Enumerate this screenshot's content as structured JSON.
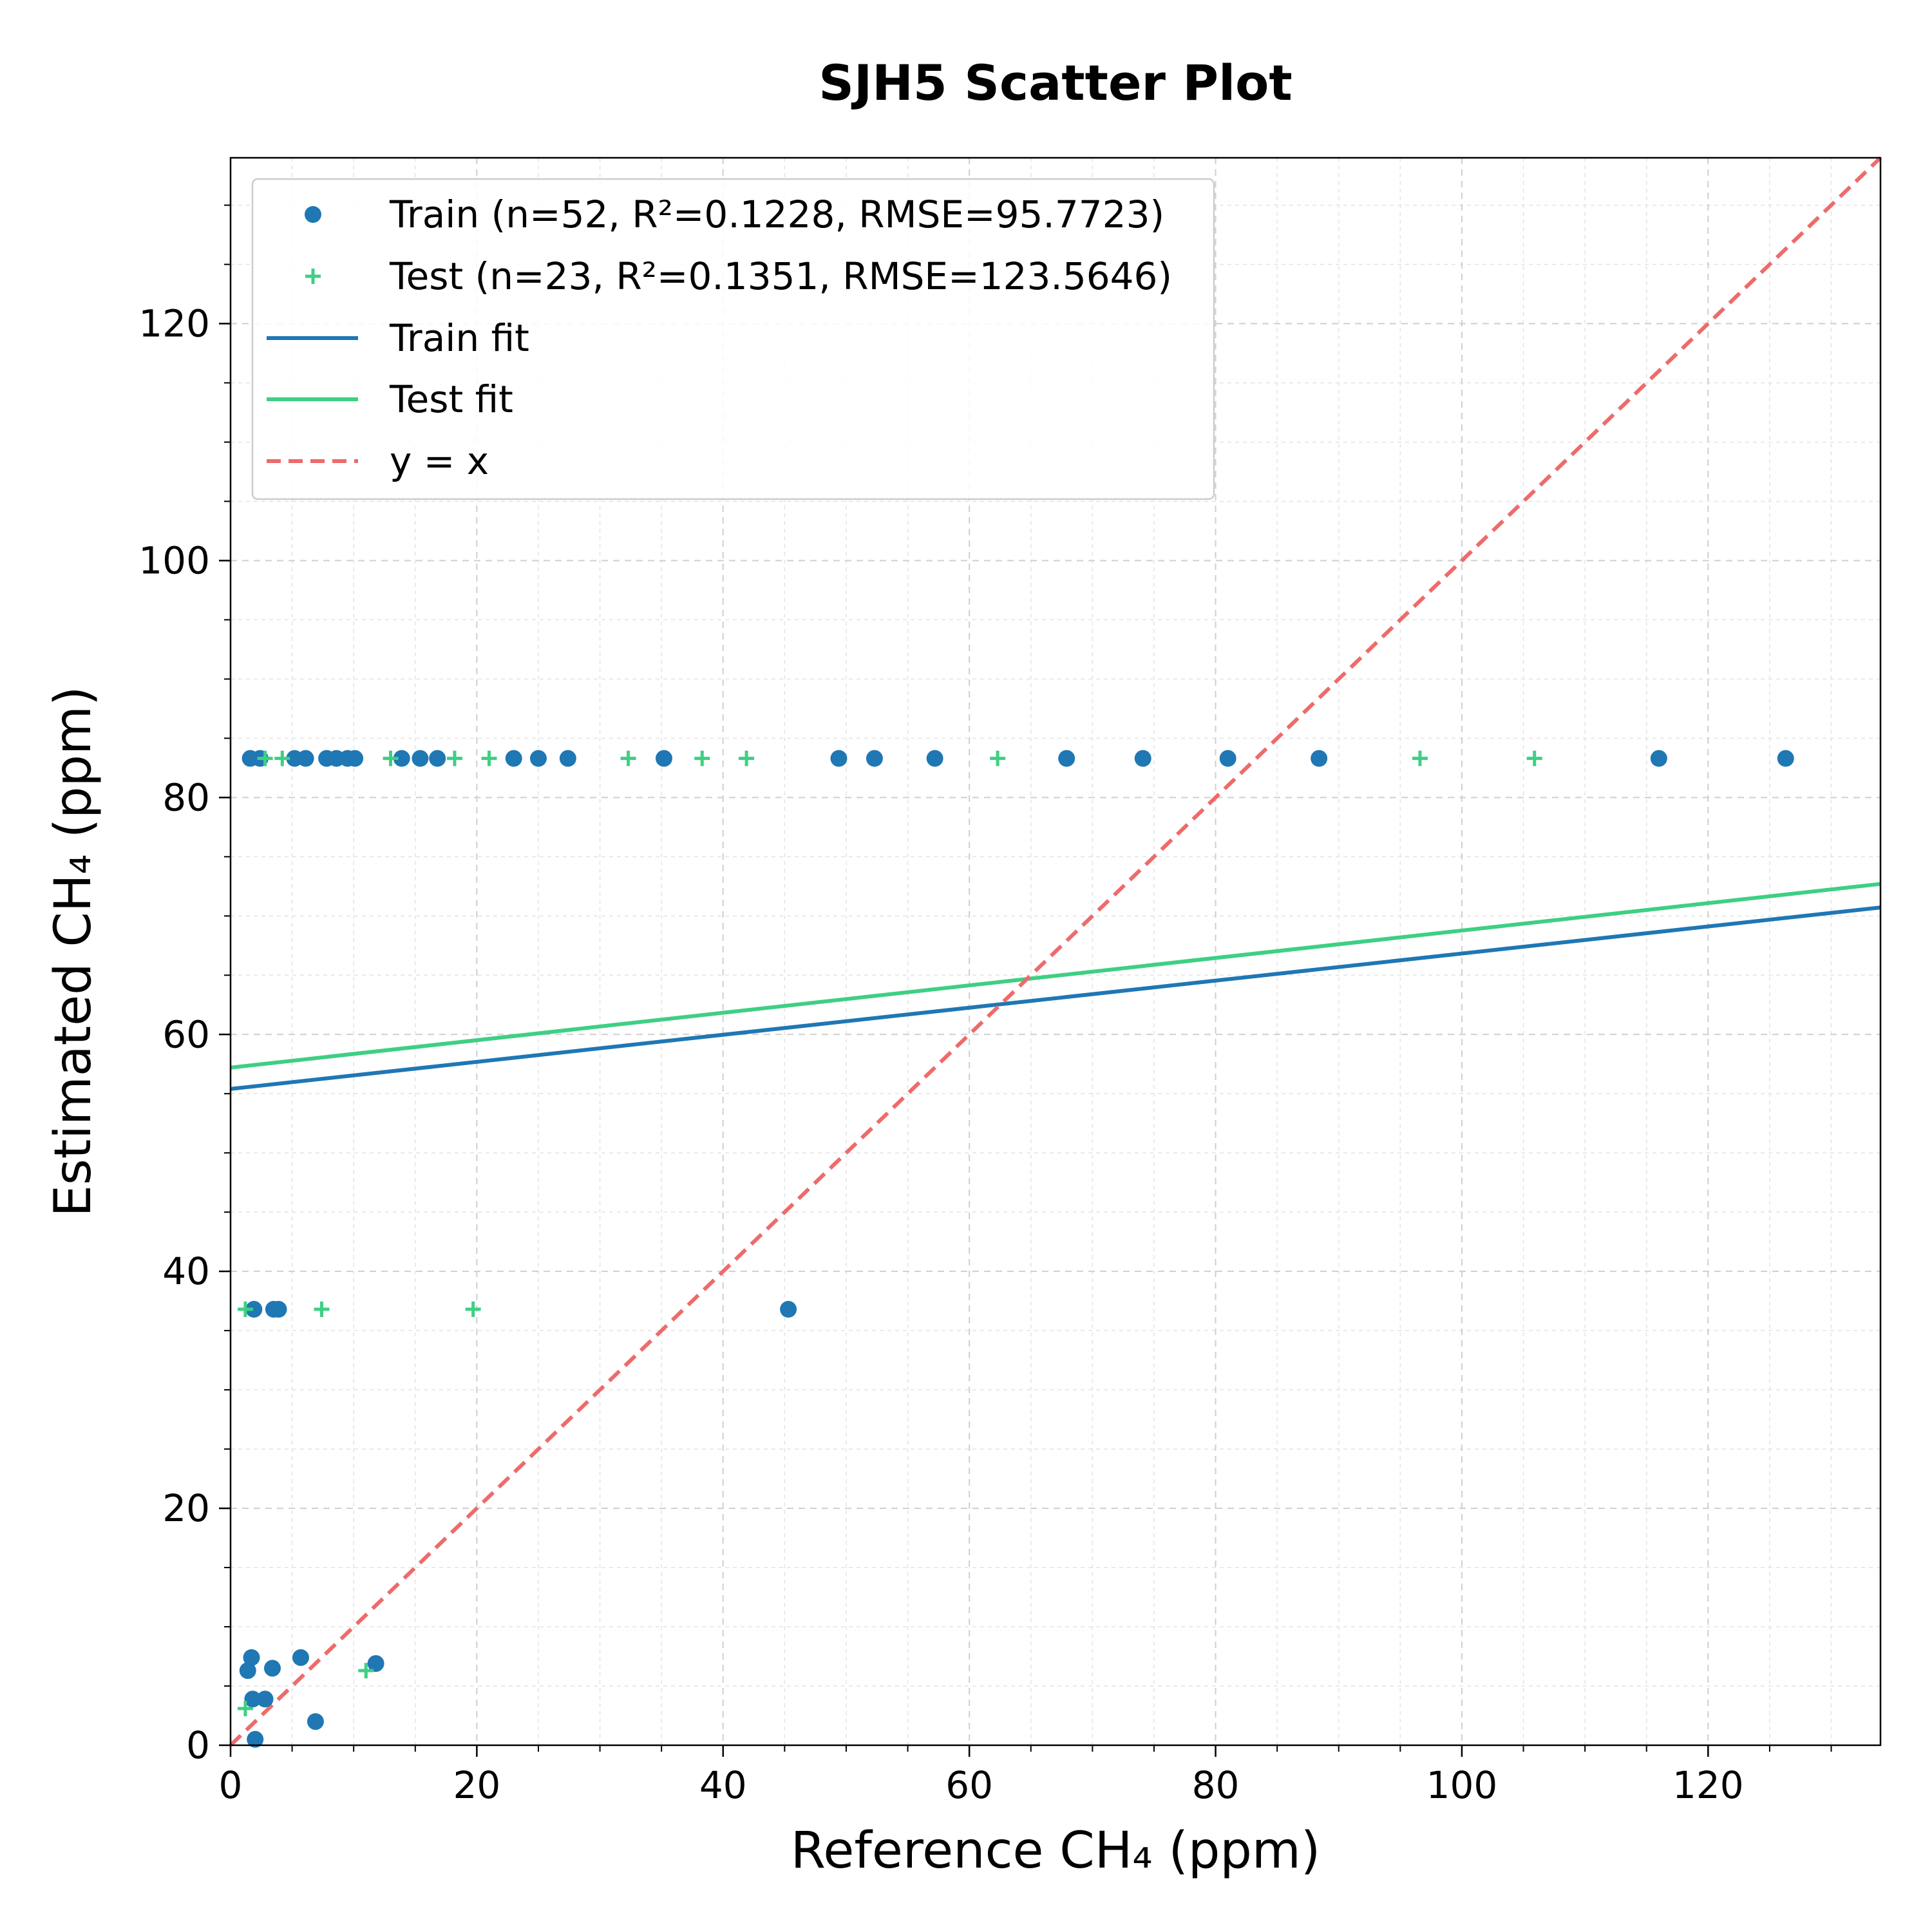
{
  "chart_data": {
    "type": "scatter",
    "title": "SJH5 Scatter Plot",
    "xlabel": "Reference CH₄ (ppm)",
    "ylabel": "Estimated CH₄ (ppm)",
    "xlim": [
      0,
      134
    ],
    "ylim": [
      0,
      134
    ],
    "x_ticks": [
      0,
      20,
      40,
      60,
      80,
      100,
      120
    ],
    "y_ticks": [
      0,
      20,
      40,
      60,
      80,
      100,
      120
    ],
    "grid": true,
    "legend_position": "top-left",
    "colors": {
      "train": "#1f77b4",
      "test": "#3ecf84",
      "identity": "#ee6b6b"
    },
    "series": [
      {
        "name": "Train (n=52, R²=0.1228, RMSE=95.7723)",
        "marker": "circle",
        "points": [
          [
            1.6,
            83.3
          ],
          [
            2.4,
            83.3
          ],
          [
            5.2,
            83.3
          ],
          [
            6.1,
            83.3
          ],
          [
            7.8,
            83.3
          ],
          [
            8.6,
            83.3
          ],
          [
            9.5,
            83.3
          ],
          [
            10.1,
            83.3
          ],
          [
            13.9,
            83.3
          ],
          [
            15.4,
            83.3
          ],
          [
            16.8,
            83.3
          ],
          [
            23.0,
            83.3
          ],
          [
            25.0,
            83.3
          ],
          [
            27.4,
            83.3
          ],
          [
            35.2,
            83.3
          ],
          [
            49.4,
            83.3
          ],
          [
            52.3,
            83.3
          ],
          [
            57.2,
            83.3
          ],
          [
            67.9,
            83.3
          ],
          [
            74.1,
            83.3
          ],
          [
            81.0,
            83.3
          ],
          [
            88.4,
            83.3
          ],
          [
            116.0,
            83.3
          ],
          [
            126.3,
            83.3
          ],
          [
            1.9,
            36.8
          ],
          [
            3.5,
            36.8
          ],
          [
            3.9,
            36.8
          ],
          [
            45.3,
            36.8
          ],
          [
            1.4,
            6.3
          ],
          [
            1.7,
            7.4
          ],
          [
            1.8,
            3.9
          ],
          [
            2.8,
            3.9
          ],
          [
            3.4,
            6.5
          ],
          [
            5.7,
            7.4
          ],
          [
            6.9,
            2.0
          ],
          [
            11.8,
            6.9
          ],
          [
            2.0,
            0.5
          ]
        ]
      },
      {
        "name": "Test (n=23, R²=0.1351, RMSE=123.5646)",
        "marker": "plus",
        "points": [
          [
            2.8,
            83.3
          ],
          [
            4.2,
            83.3
          ],
          [
            13.0,
            83.3
          ],
          [
            18.2,
            83.3
          ],
          [
            21.0,
            83.3
          ],
          [
            32.3,
            83.3
          ],
          [
            38.3,
            83.3
          ],
          [
            41.9,
            83.3
          ],
          [
            62.3,
            83.3
          ],
          [
            96.6,
            83.3
          ],
          [
            105.9,
            83.3
          ],
          [
            1.2,
            36.8
          ],
          [
            7.4,
            36.8
          ],
          [
            19.7,
            36.8
          ],
          [
            1.2,
            3.1
          ],
          [
            11.0,
            6.3
          ]
        ]
      }
    ],
    "fits": [
      {
        "name": "Train fit",
        "intercept": 55.4,
        "slope": 0.1143
      },
      {
        "name": "Test fit",
        "intercept": 57.2,
        "slope": 0.1157
      }
    ],
    "identity_line": {
      "name": "y = x"
    }
  }
}
